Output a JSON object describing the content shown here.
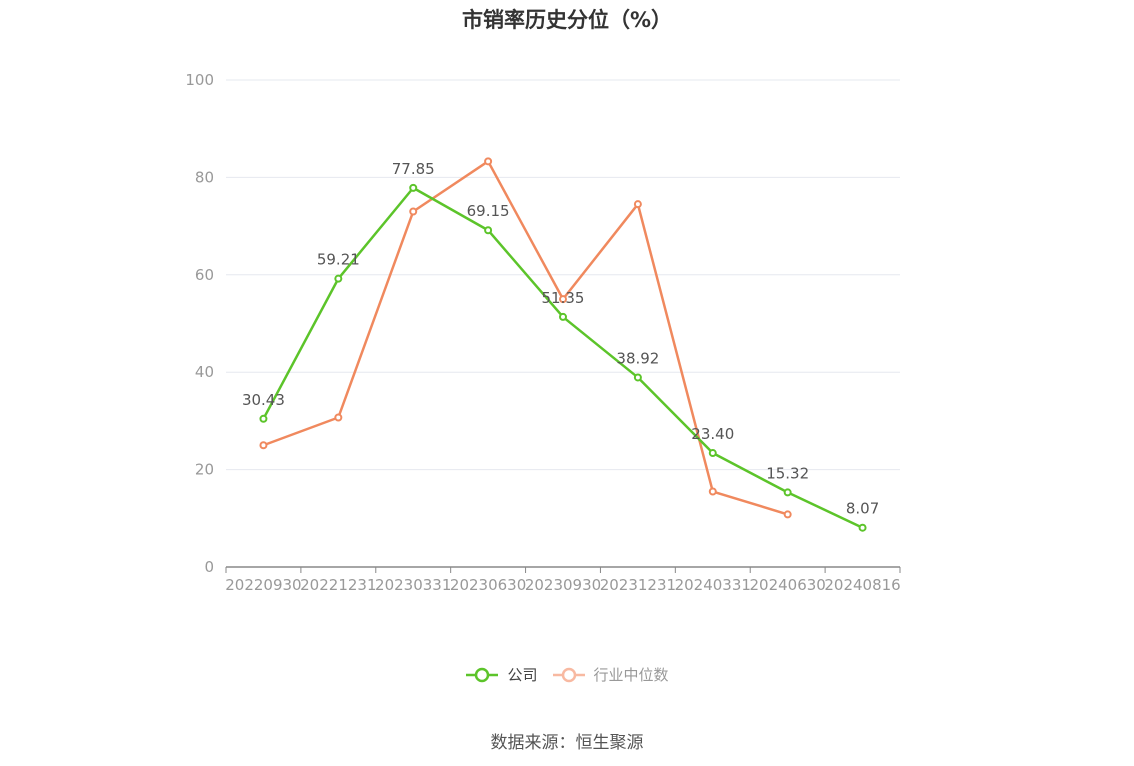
{
  "title": "市销率历史分位（%）",
  "source": "数据来源：恒生聚源",
  "colors": {
    "company": "#5cc42a",
    "industry": "#f0895e",
    "industry_legend": "#f8b9a1",
    "grid": "#e6e8ef",
    "axis": "#888888",
    "tick_label": "#999999",
    "data_label": "#555555"
  },
  "chart_data": {
    "type": "line",
    "title": "市销率历史分位（%）",
    "x": [
      "20220930",
      "20221231",
      "20230331",
      "20230630",
      "20230930",
      "20231231",
      "20240331",
      "20240630",
      "20240816"
    ],
    "ylim": [
      0,
      100
    ],
    "yticks": [
      0,
      20,
      40,
      60,
      80,
      100
    ],
    "grid": true,
    "legend_position": "bottom",
    "series": [
      {
        "name": "公司",
        "values": [
          30.43,
          59.21,
          77.85,
          69.15,
          51.35,
          38.92,
          23.4,
          15.32,
          8.07
        ],
        "labels": [
          "30.43",
          "59.21",
          "77.85",
          "69.15",
          "51.35",
          "38.92",
          "23.40",
          "15.32",
          "8.07"
        ]
      },
      {
        "name": "行业中位数",
        "values": [
          25.0,
          30.7,
          73.0,
          83.3,
          55.0,
          74.5,
          15.5,
          10.8,
          null
        ]
      }
    ]
  }
}
